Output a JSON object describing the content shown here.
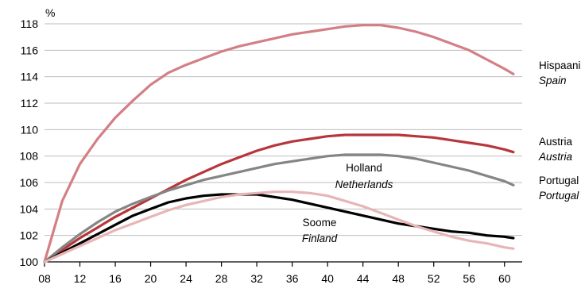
{
  "chart_data": {
    "type": "line",
    "title": "",
    "unit_label": "%",
    "xlabel": "",
    "ylabel": "",
    "ylim": [
      100,
      118
    ],
    "y_ticks": [
      100,
      102,
      104,
      106,
      108,
      110,
      112,
      114,
      116,
      118
    ],
    "xlim": [
      8,
      62
    ],
    "x_ticks": [
      8,
      12,
      16,
      20,
      24,
      28,
      32,
      36,
      40,
      44,
      48,
      52,
      56,
      60
    ],
    "x_tick_labels": [
      "08",
      "12",
      "16",
      "20",
      "24",
      "28",
      "32",
      "36",
      "40",
      "44",
      "48",
      "52",
      "56",
      "60"
    ],
    "grid": true,
    "series": [
      {
        "key": "spain",
        "name": "Hispaania",
        "name_en": "Spain",
        "color": "#d37f85",
        "x": [
          8,
          10,
          12,
          14,
          16,
          18,
          20,
          22,
          24,
          26,
          28,
          30,
          32,
          34,
          36,
          38,
          40,
          42,
          44,
          46,
          48,
          50,
          52,
          54,
          56,
          58,
          60,
          61
        ],
        "y": [
          100.0,
          104.6,
          107.4,
          109.3,
          110.9,
          112.2,
          113.4,
          114.3,
          114.9,
          115.4,
          115.9,
          116.3,
          116.6,
          116.9,
          117.2,
          117.4,
          117.6,
          117.8,
          117.9,
          117.9,
          117.7,
          117.4,
          117.0,
          116.5,
          116.0,
          115.3,
          114.6,
          114.2
        ]
      },
      {
        "key": "austria",
        "name": "Austria",
        "name_en": "Austria",
        "color": "#b8363b",
        "x": [
          8,
          10,
          12,
          14,
          16,
          18,
          20,
          22,
          24,
          26,
          28,
          30,
          32,
          34,
          36,
          38,
          40,
          42,
          44,
          46,
          48,
          50,
          52,
          54,
          56,
          58,
          60,
          61
        ],
        "y": [
          100.0,
          100.9,
          101.8,
          102.6,
          103.4,
          104.1,
          104.8,
          105.5,
          106.2,
          106.8,
          107.4,
          107.9,
          108.4,
          108.8,
          109.1,
          109.3,
          109.5,
          109.6,
          109.6,
          109.6,
          109.6,
          109.5,
          109.4,
          109.2,
          109.0,
          108.8,
          108.5,
          108.3
        ]
      },
      {
        "key": "netherlands",
        "name": "Holland",
        "name_en": "Netherlands",
        "color": "#858585",
        "x": [
          8,
          10,
          12,
          14,
          16,
          18,
          20,
          22,
          24,
          26,
          28,
          30,
          32,
          34,
          36,
          38,
          40,
          42,
          44,
          46,
          48,
          50,
          52,
          54,
          56,
          58,
          60,
          61
        ],
        "y": [
          100.0,
          101.1,
          102.1,
          103.0,
          103.8,
          104.4,
          104.9,
          105.4,
          105.8,
          106.2,
          106.5,
          106.8,
          107.1,
          107.4,
          107.6,
          107.8,
          108.0,
          108.1,
          108.1,
          108.1,
          108.0,
          107.8,
          107.5,
          107.2,
          106.9,
          106.5,
          106.1,
          105.8
        ]
      },
      {
        "key": "finland",
        "name": "Soome",
        "name_en": "Finland",
        "color": "#000000",
        "x": [
          8,
          10,
          12,
          14,
          16,
          18,
          20,
          22,
          24,
          26,
          28,
          30,
          32,
          34,
          36,
          38,
          40,
          42,
          44,
          46,
          48,
          50,
          52,
          54,
          56,
          58,
          60,
          61
        ],
        "y": [
          100.0,
          100.7,
          101.4,
          102.1,
          102.8,
          103.5,
          104.0,
          104.5,
          104.8,
          105.0,
          105.1,
          105.1,
          105.1,
          104.9,
          104.7,
          104.4,
          104.1,
          103.8,
          103.5,
          103.2,
          102.9,
          102.7,
          102.5,
          102.3,
          102.2,
          102.0,
          101.9,
          101.8
        ]
      },
      {
        "key": "portugal",
        "name": "Portugal",
        "name_en": "Portugal",
        "color": "#e8b5b7",
        "x": [
          8,
          10,
          12,
          14,
          16,
          18,
          20,
          22,
          24,
          26,
          28,
          30,
          32,
          34,
          36,
          38,
          40,
          42,
          44,
          46,
          48,
          50,
          52,
          54,
          56,
          58,
          60,
          61
        ],
        "y": [
          100.0,
          100.6,
          101.2,
          101.8,
          102.4,
          102.9,
          103.4,
          103.9,
          104.3,
          104.6,
          104.9,
          105.1,
          105.2,
          105.3,
          105.3,
          105.2,
          105.0,
          104.6,
          104.2,
          103.7,
          103.2,
          102.7,
          102.3,
          101.9,
          101.6,
          101.4,
          101.1,
          101.0
        ]
      }
    ]
  }
}
